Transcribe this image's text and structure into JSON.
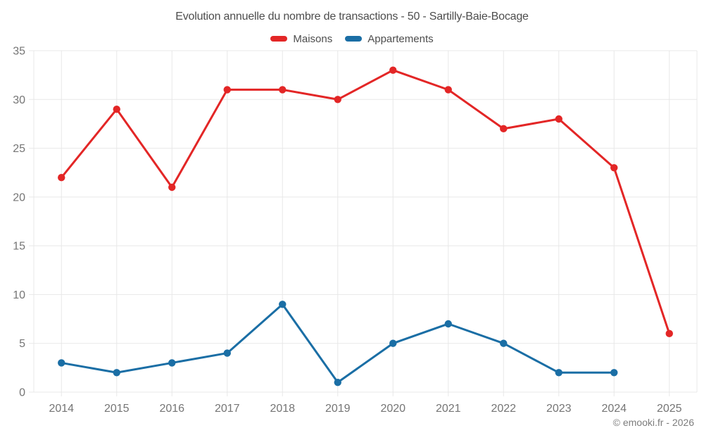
{
  "title": "Evolution annuelle du nombre de transactions - 50 - Sartilly-Baie-Bocage",
  "watermark": "© emooki.fr - 2026",
  "chart_data": {
    "type": "line",
    "title": "Evolution annuelle du nombre de transactions - 50 - Sartilly-Baie-Bocage",
    "categories": [
      "2014",
      "2015",
      "2016",
      "2017",
      "2018",
      "2019",
      "2020",
      "2021",
      "2022",
      "2023",
      "2024",
      "2025"
    ],
    "series": [
      {
        "name": "Maisons",
        "color": "#e32626",
        "values": [
          22,
          29,
          21,
          31,
          31,
          30,
          33,
          31,
          27,
          28,
          23,
          6
        ]
      },
      {
        "name": "Appartements",
        "color": "#1a6ea5",
        "values": [
          3,
          2,
          3,
          4,
          9,
          1,
          5,
          7,
          5,
          2,
          2,
          null
        ]
      }
    ],
    "xlabel": "",
    "ylabel": "",
    "ylim": [
      0,
      35
    ],
    "ytick_step": 5,
    "yticks": [
      0,
      5,
      10,
      15,
      20,
      25,
      30,
      35
    ],
    "grid": "on",
    "grid_color": "#e8e8e8",
    "axis_label_color": "#757575",
    "legend_position": "top"
  }
}
